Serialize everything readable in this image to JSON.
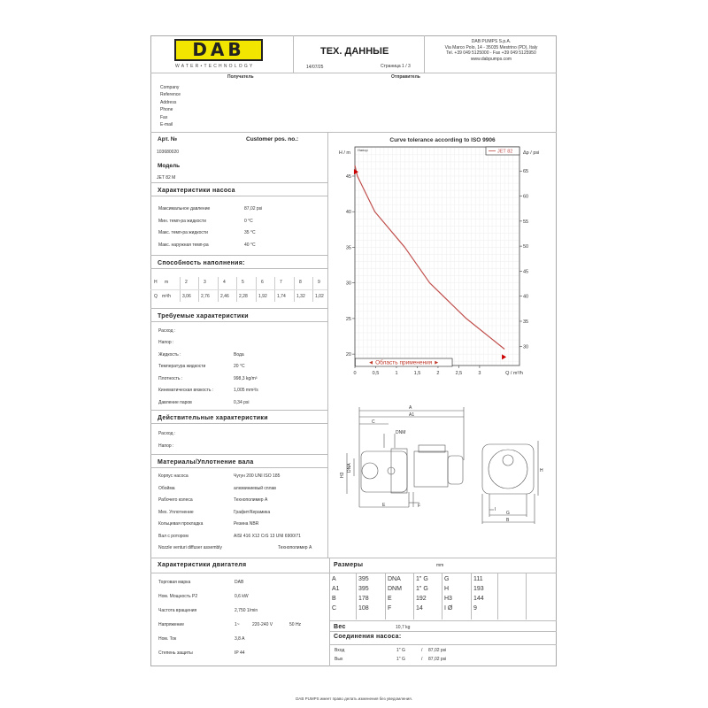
{
  "header": {
    "logo_text": "DAB",
    "logo_sub": "WATER•TECHNOLOGY",
    "title": "ТЕХ. ДАННЫЕ",
    "date": "14/07/25",
    "page": "Страница 1 / 3",
    "company": [
      "DAB PUMPS S.p.A.",
      "Via Marco Polo, 14 - 35035 Mestrino (PD), Italy",
      "Tel. +39 049 5125000 - Fax +39 049 5125950",
      "www.dabpumps.com"
    ],
    "brand_color": "#f2e600"
  },
  "recipient": {
    "label": "Получатель",
    "fields": [
      "Company",
      "Reference",
      "Address",
      "Phone",
      "Fax",
      "E-mail"
    ]
  },
  "sender": {
    "label": "Отправитель"
  },
  "article": {
    "label": "Арт. №",
    "value": "103680020",
    "customer_label": "Customer pos. no.:",
    "model_label": "Модель",
    "model": "JET 82 M"
  },
  "pump_chars": {
    "title": "Характеристики насоса",
    "rows": [
      [
        "Максимальное давление",
        "87,02 psi"
      ],
      [
        "Мин. темп-ра жидкости",
        "0 °C"
      ],
      [
        "Макс. темп-ра жидкости",
        "35 °C"
      ],
      [
        "Макс. наружная темп-ра",
        "40 °C"
      ]
    ]
  },
  "filling": {
    "title": "Способность наполнения:",
    "h_label": "H",
    "h_unit": "m",
    "q_label": "Q",
    "q_unit": "m³/h",
    "h": [
      "2",
      "3",
      "4",
      "5",
      "6",
      "7",
      "8",
      "9"
    ],
    "q": [
      "3,06",
      "2,76",
      "2,46",
      "2,28",
      "1,92",
      "1,74",
      "1,32",
      "1,02"
    ]
  },
  "required": {
    "title": "Требуемые характеристики",
    "rows": [
      [
        "Расход :",
        ""
      ],
      [
        "Напор :",
        ""
      ],
      [
        "Жидкость :",
        "Вода"
      ],
      [
        "Температура жидкости",
        "20 °C"
      ],
      [
        "Плотность :",
        "998,3 kg/m³"
      ],
      [
        "Кинематическая вязкость :",
        "1,005 mm²/s"
      ],
      [
        "Давление паров",
        "0,34 psi"
      ]
    ]
  },
  "actual": {
    "title": "Действительные характеристики",
    "rows": [
      [
        "Расход :",
        ""
      ],
      [
        "Напор :",
        ""
      ]
    ]
  },
  "materials": {
    "title": "Материалы/Уплотнение вала",
    "rows": [
      [
        "Корпус насоса",
        "Чугун 200 UNI ISO 185"
      ],
      [
        "Обойма",
        "алюминиевый сплав"
      ],
      [
        "Рабочего колеса",
        "Технополимер A"
      ],
      [
        "Мех. Уплотнение",
        "Графит/Керамика"
      ],
      [
        "Кольцевая прокладка",
        "Резина NBR"
      ],
      [
        "Вал с ротором",
        "AISI 416 X12 CrS 13 UNI 6900/71"
      ],
      [
        "Nozzle venturi diffuser assembly",
        "Технополимер A"
      ]
    ]
  },
  "motor": {
    "title": "Характеристики двигателя",
    "rows": [
      [
        "Торговая марка",
        "DAB"
      ],
      [
        "Ном. Мощность P2",
        "0,6 kW"
      ],
      [
        "Частота вращения",
        "2,750 1/min"
      ],
      [
        "Напряжение",
        "1~"
      ],
      [
        "Ном. Ток",
        "3,8 A"
      ],
      [
        "Степень защиты",
        "IP 44"
      ]
    ],
    "voltage": "220-240 V",
    "frequency": "50 Hz"
  },
  "dims": {
    "title": "Размеры",
    "unit": "mm",
    "rows": [
      [
        "A",
        "395",
        "DNA",
        "1\" G",
        "G",
        "111"
      ],
      [
        "A1",
        "395",
        "DNM",
        "1\" G",
        "H",
        "193"
      ],
      [
        "B",
        "178",
        "E",
        "192",
        "H3",
        "144"
      ],
      [
        "C",
        "108",
        "F",
        "14",
        "I Ø",
        "9"
      ]
    ]
  },
  "weight": {
    "label": "Вес",
    "value": "10,7 kg"
  },
  "connections": {
    "title": "Соединения насоса:",
    "rows": [
      [
        "Вход",
        "1\" G",
        "/",
        "87,02 psi"
      ],
      [
        "Вых",
        "1\" G",
        "/",
        "87,02 psi"
      ]
    ]
  },
  "drawing": {
    "labels": {
      "A": "A",
      "A1": "A1",
      "C": "C",
      "DNM": "DNM",
      "DNA": "DNA",
      "H3": "H3",
      "E": "E",
      "F": "F",
      "H": "H",
      "I": "I",
      "G": "G",
      "B": "B"
    }
  },
  "footer": "DAB PUMPS имеет право делать изменения без уведомления.",
  "chart_data": {
    "type": "line",
    "title": "Curve tolerance according to ISO 9906",
    "xlabel": "Q / m³/h",
    "ylabel": "H / m",
    "y2label": "Δp / psi",
    "inner_label": "Напор",
    "xlim": [
      0,
      3.96
    ],
    "ylim": [
      18.4,
      49.1
    ],
    "y2_per_y": 1.4219,
    "xticks": [
      "0",
      "0,5",
      "1",
      "1,5",
      "2",
      "2,5",
      "3"
    ],
    "yticks": [
      "20",
      "25",
      "30",
      "35",
      "40",
      "45"
    ],
    "y2ticks": [
      "30",
      "35",
      "40",
      "45",
      "50",
      "55",
      "60",
      "65"
    ],
    "grid": true,
    "legend_position": "top-right",
    "series": [
      {
        "name": "JET 82",
        "color": "#c0504d",
        "x": [
          0,
          0.06,
          0.48,
          1.2,
          1.8,
          2.68,
          3.6
        ],
        "y": [
          46.5,
          45,
          40,
          35,
          30,
          25,
          20.7
        ]
      }
    ],
    "range_label": "◄ Область применения ►",
    "range": [
      0.05,
      2.3
    ]
  }
}
